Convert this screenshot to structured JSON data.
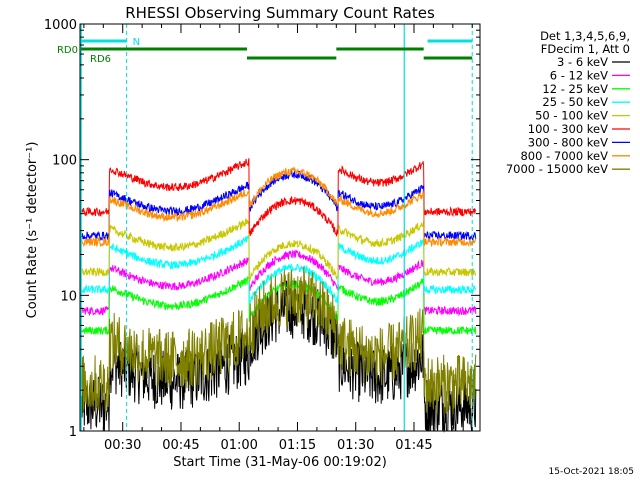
{
  "chart_data": {
    "type": "line",
    "title": "RHESSI Observing Summary Count Rates",
    "xlabel": "Start Time (31-May-06 00:19:02)",
    "ylabel": "Count Rate (s⁻¹ detector⁻¹)",
    "yscale": "log",
    "ylim": [
      1,
      1000
    ],
    "xlim_minutes": [
      19.0,
      122.0
    ],
    "x_ticks": [
      {
        "label": "00:30",
        "minute": 30
      },
      {
        "label": "00:45",
        "minute": 45
      },
      {
        "label": "01:00",
        "minute": 60
      },
      {
        "label": "01:15",
        "minute": 75
      },
      {
        "label": "01:30",
        "minute": 90
      },
      {
        "label": "01:45",
        "minute": 105
      }
    ],
    "y_ticks": [
      {
        "label": "1",
        "value": 1
      },
      {
        "label": "10",
        "value": 10
      },
      {
        "label": "100",
        "value": 100
      },
      {
        "label": "1000",
        "value": 1000
      }
    ],
    "legend_header": [
      "Det 1,3,4,5,6,9,",
      "FDecim 1, Att 0"
    ],
    "legend_placement": "right",
    "series": [
      {
        "name": "3 - 6 keV",
        "color": "#000000",
        "level_day": 2.8,
        "hump_peak": 8,
        "noisy": true
      },
      {
        "name": "6 - 12 keV",
        "color": "#ff00ff",
        "level_day": 14,
        "hump_peak": 20
      },
      {
        "name": "12 - 25 keV",
        "color": "#00ff00",
        "level_day": 10,
        "hump_peak": 12
      },
      {
        "name": "25 - 50 keV",
        "color": "#00ffff",
        "level_day": 20,
        "hump_peak": 16
      },
      {
        "name": "50 - 100 keV",
        "color": "#c8c800",
        "level_day": 27,
        "hump_peak": 24
      },
      {
        "name": "100 - 300 keV",
        "color": "#ff0000",
        "level_day": 75,
        "hump_peak": 50
      },
      {
        "name": "300 - 800 keV",
        "color": "#0000ff",
        "level_day": 50,
        "hump_peak": 78
      },
      {
        "name": "800 - 7000 keV",
        "color": "#ff8c00",
        "level_day": 45,
        "hump_peak": 82
      },
      {
        "name": "7000 - 15000 keV",
        "color": "#808000",
        "level_day": 4,
        "hump_peak": 10,
        "noisy": true
      }
    ],
    "segments_minutes": {
      "day1": [
        26.5,
        62.5
      ],
      "night": [
        62.5,
        85.5
      ],
      "day2": [
        85.5,
        107.5
      ]
    },
    "vertical_lines_minutes": {
      "solid": [
        19.3,
        102.5
      ],
      "dashed": [
        31.0,
        120.0
      ]
    },
    "flags": [
      {
        "label": "N",
        "color": "#00e0e0",
        "bars": [
          [
            19.3,
            31.0
          ],
          [
            108.5,
            120.0
          ]
        ],
        "row": 0
      },
      {
        "label": "RD0",
        "color": "#008000",
        "bars": [
          [
            19.3,
            62.0
          ],
          [
            85.0,
            107.5
          ]
        ],
        "row": 1
      },
      {
        "label": "RD6",
        "color": "#008000",
        "bars": [
          [
            62.0,
            85.0
          ],
          [
            107.5,
            120.0
          ]
        ],
        "row": 2
      }
    ],
    "footer": "15-Oct-2021 18:05",
    "grid": false
  }
}
